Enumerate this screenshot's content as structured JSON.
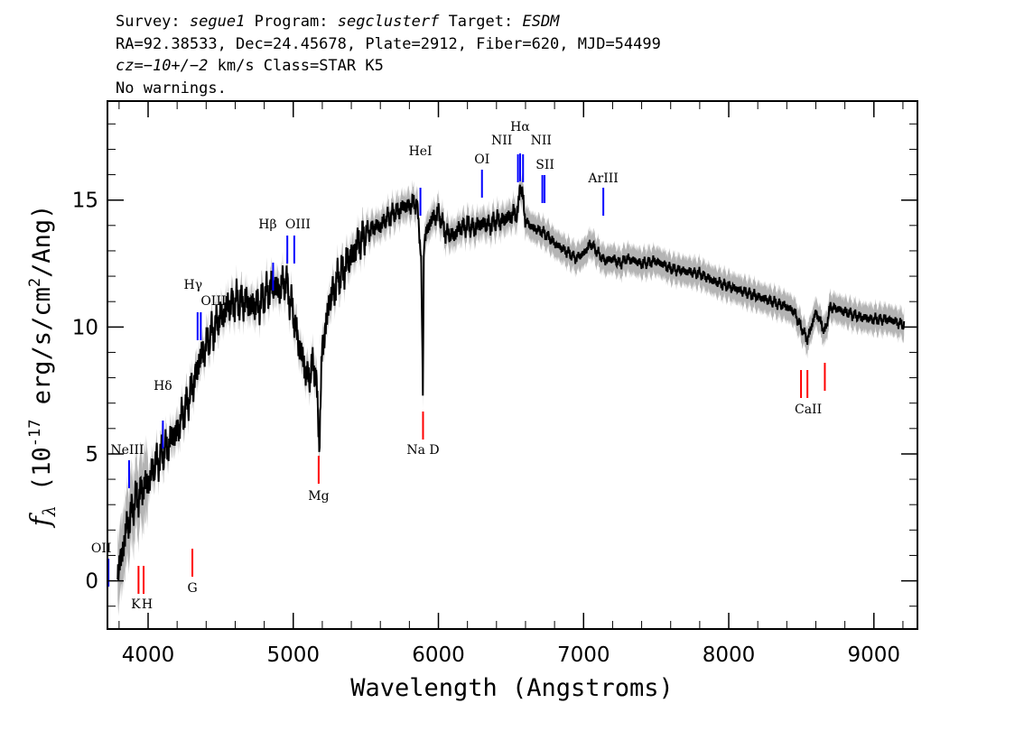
{
  "header": {
    "survey_label": "Survey:",
    "survey": "segue1",
    "program_label": "Program:",
    "program": "segclusterf",
    "target_label": "Target:",
    "target": "ESDM",
    "line2": "RA=92.38533, Dec=24.45678, Plate=2912, Fiber=620, MJD=54499",
    "cz_prefix": "cz=",
    "cz_value": "−10+/−2",
    "cz_suffix": " km/s Class=STAR K5",
    "warnings": "No warnings."
  },
  "chart_data": {
    "type": "line",
    "xlabel": "Wavelength (Angstroms)",
    "ylabel": "fλ (10^-17 erg/s/cm^2/Ang)",
    "xlim": [
      3720,
      9300
    ],
    "ylim": [
      -1.9,
      18.9
    ],
    "x_ticks": [
      4000,
      5000,
      6000,
      7000,
      8000,
      9000
    ],
    "x_tick_labels": [
      "4000",
      "5000",
      "6000",
      "7000",
      "8000",
      "9000"
    ],
    "y_ticks": [
      0,
      5,
      10,
      15
    ],
    "y_tick_labels": [
      "0",
      "5",
      "10",
      "15"
    ],
    "grid": false,
    "colors": {
      "flux": "#000000",
      "error": "#b4b4b4",
      "emission_marker": "#0000ff",
      "absorption_marker": "#ff0000"
    },
    "series": [
      {
        "name": "flux",
        "x": [
          3800,
          3850,
          3900,
          3950,
          4000,
          4050,
          4100,
          4150,
          4200,
          4250,
          4300,
          4350,
          4400,
          4450,
          4500,
          4550,
          4600,
          4650,
          4700,
          4750,
          4800,
          4850,
          4900,
          4950,
          5000,
          5050,
          5100,
          5150,
          5180,
          5200,
          5250,
          5300,
          5350,
          5400,
          5450,
          5500,
          5550,
          5600,
          5650,
          5700,
          5750,
          5800,
          5850,
          5880,
          5893,
          5900,
          5950,
          6000,
          6050,
          6100,
          6150,
          6200,
          6250,
          6300,
          6350,
          6400,
          6450,
          6500,
          6550,
          6563,
          6600,
          6650,
          6700,
          6750,
          6800,
          6850,
          6900,
          6950,
          7000,
          7050,
          7100,
          7150,
          7200,
          7250,
          7300,
          7400,
          7500,
          7600,
          7700,
          7800,
          7900,
          8000,
          8100,
          8200,
          8300,
          8400,
          8450,
          8498,
          8542,
          8600,
          8662,
          8700,
          8800,
          8900,
          9000,
          9100,
          9200
        ],
        "values": [
          0.5,
          2.0,
          3.0,
          3.5,
          3.9,
          4.6,
          5.0,
          5.5,
          5.9,
          6.7,
          7.5,
          8.6,
          9.3,
          9.9,
          10.4,
          10.8,
          11.0,
          11.0,
          10.9,
          10.8,
          11.2,
          11.6,
          11.5,
          11.8,
          10.5,
          9.0,
          8.0,
          8.6,
          5.5,
          9.2,
          11.0,
          11.8,
          12.3,
          12.8,
          13.3,
          13.7,
          13.9,
          14.0,
          14.3,
          14.5,
          14.7,
          14.8,
          14.9,
          13.0,
          7.3,
          13.5,
          14.2,
          14.5,
          13.7,
          13.6,
          13.9,
          14.0,
          13.9,
          14.1,
          14.0,
          14.2,
          14.2,
          14.4,
          14.5,
          15.8,
          14.2,
          13.9,
          13.8,
          13.6,
          13.3,
          13.1,
          12.9,
          12.7,
          12.9,
          13.3,
          12.9,
          12.6,
          12.7,
          12.5,
          12.7,
          12.5,
          12.6,
          12.3,
          12.2,
          12.1,
          11.8,
          11.6,
          11.4,
          11.2,
          11.0,
          10.8,
          10.6,
          10.0,
          9.5,
          10.6,
          9.8,
          10.8,
          10.6,
          10.4,
          10.3,
          10.3,
          10.1
        ]
      }
    ],
    "emission_lines": [
      {
        "label": "OII",
        "wave": 3727,
        "color": "#0000ff"
      },
      {
        "label": "NeIII",
        "wave": 3869,
        "color": "#0000ff"
      },
      {
        "label": "Hδ",
        "wave": 4102,
        "color": "#0000ff"
      },
      {
        "label": "Hγ",
        "wave": 4341,
        "color": "#0000ff"
      },
      {
        "label": "OIII",
        "wave": 4363,
        "color": "#0000ff"
      },
      {
        "label": "Hβ",
        "wave": 4861,
        "color": "#0000ff"
      },
      {
        "label": "OIII",
        "wave": 4959,
        "color": "#0000ff"
      },
      {
        "label": "OIII",
        "wave": 5007,
        "color": "#0000ff"
      },
      {
        "label": "HeI",
        "wave": 5876,
        "color": "#0000ff"
      },
      {
        "label": "OI",
        "wave": 6300,
        "color": "#0000ff"
      },
      {
        "label": "NII",
        "wave": 6548,
        "color": "#0000ff"
      },
      {
        "label": "Hα",
        "wave": 6563,
        "color": "#0000ff"
      },
      {
        "label": "NII",
        "wave": 6583,
        "color": "#0000ff"
      },
      {
        "label": "SII",
        "wave": 6716,
        "color": "#0000ff"
      },
      {
        "label": "SII",
        "wave": 6731,
        "color": "#0000ff"
      },
      {
        "label": "ArIII",
        "wave": 7136,
        "color": "#0000ff"
      }
    ],
    "absorption_lines": [
      {
        "label": "K",
        "wave": 3934,
        "color": "#ff0000"
      },
      {
        "label": "H",
        "wave": 3969,
        "color": "#ff0000"
      },
      {
        "label": "G",
        "wave": 4305,
        "color": "#ff0000"
      },
      {
        "label": "Mg",
        "wave": 5175,
        "color": "#ff0000"
      },
      {
        "label": "Na D",
        "wave": 5894,
        "color": "#ff0000"
      },
      {
        "label": "CaII",
        "wave": 8498,
        "color": "#ff0000"
      },
      {
        "label": "CaII",
        "wave": 8542,
        "color": "#ff0000"
      },
      {
        "label": "CaII",
        "wave": 8662,
        "color": "#ff0000"
      }
    ]
  }
}
